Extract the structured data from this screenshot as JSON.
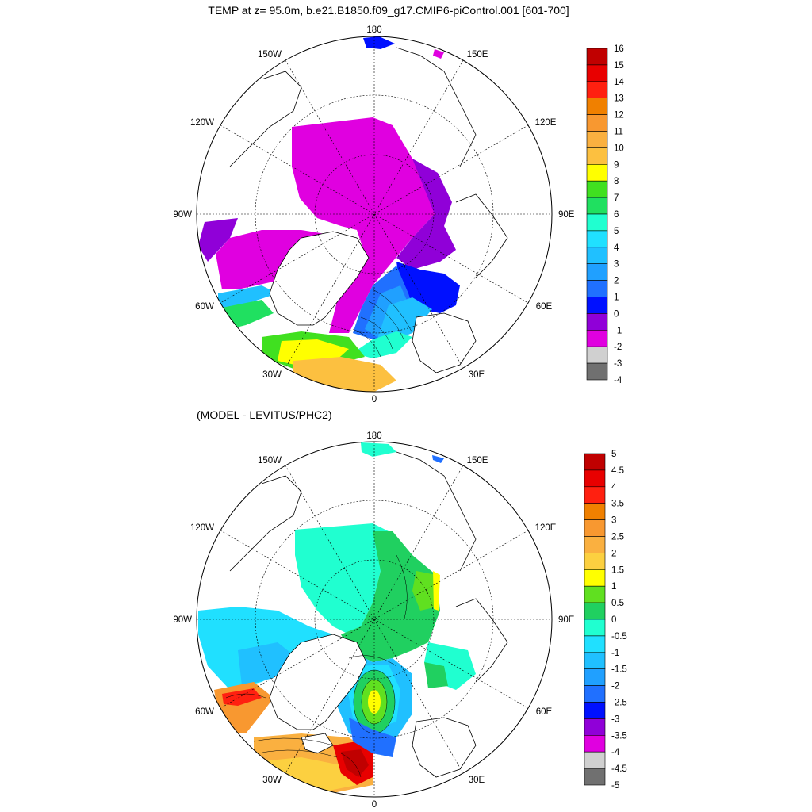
{
  "panels": [
    {
      "title": "TEMP at z=  95.0m, b.e21.B1850.f09_g17.CMIP6-piControl.001 [601-700]",
      "lon_labels": {
        "top": "180",
        "bottom": "0",
        "left": "90W",
        "right": "90E",
        "ul1": "150W",
        "ul2": "120W",
        "ur1": "150E",
        "ur2": "120E",
        "ll1": "60W",
        "ll2": "30W",
        "lr1": "60E",
        "lr2": "30E"
      },
      "colorbar": {
        "labels": [
          "16",
          "15",
          "14",
          "13",
          "12",
          "11",
          "10",
          "9",
          "8",
          "7",
          "6",
          "5",
          "4",
          "3",
          "2",
          "1",
          "0",
          "-1",
          "-2",
          "-3",
          "-4"
        ],
        "colors": [
          "#c00000",
          "#e80000",
          "#ff2010",
          "#f08000",
          "#f89830",
          "#fab040",
          "#fcc040",
          "#ffff00",
          "#40e020",
          "#20e060",
          "#20ffd0",
          "#20e0ff",
          "#20c0ff",
          "#20a0ff",
          "#2070ff",
          "#0010ff",
          "#9000d8",
          "#e000e0",
          "#d0d0d0",
          "#707070"
        ]
      }
    },
    {
      "title": "(MODEL - LEVITUS/PHC2)",
      "lon_labels": {
        "top": "180",
        "bottom": "0",
        "left": "90W",
        "right": "90E",
        "ul1": "150W",
        "ul2": "120W",
        "ur1": "150E",
        "ur2": "120E",
        "ll1": "60W",
        "ll2": "30W",
        "lr1": "60E",
        "lr2": "30E"
      },
      "colorbar": {
        "labels": [
          "5",
          "4.5",
          "4",
          "3.5",
          "3",
          "2.5",
          "2",
          "1.5",
          "1",
          "0.5",
          "0",
          "-0.5",
          "-1",
          "-1.5",
          "-2",
          "-2.5",
          "-3",
          "-3.5",
          "-4",
          "-4.5",
          "-5"
        ],
        "colors": [
          "#c00000",
          "#e80000",
          "#ff2010",
          "#f08000",
          "#f89830",
          "#fab040",
          "#fcd040",
          "#ffff00",
          "#60e020",
          "#20d060",
          "#20ffd0",
          "#20e0ff",
          "#20c0ff",
          "#20a0ff",
          "#2070ff",
          "#0010ff",
          "#9000d8",
          "#e000e0",
          "#d0d0d0",
          "#707070"
        ]
      }
    }
  ]
}
